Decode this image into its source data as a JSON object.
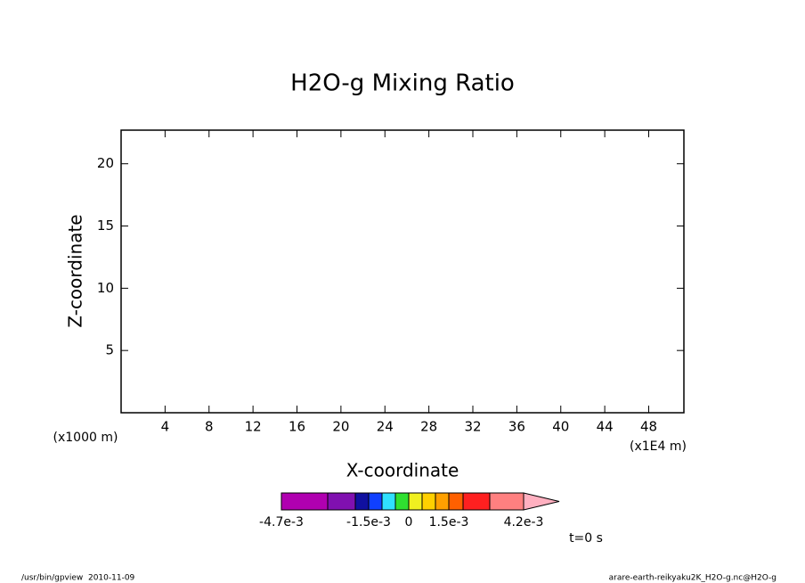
{
  "chart_data": {
    "type": "contour",
    "title": "H2O-g Mixing Ratio",
    "x_label": "X-coordinate",
    "y_label": "Z-coordinate",
    "x_unit": "(x1E4 m)",
    "y_unit": "(x1000 m)",
    "xlim": [
      0,
      51.2
    ],
    "ylim": [
      0,
      22.7
    ],
    "xticks": [
      4,
      8,
      12,
      16,
      20,
      24,
      28,
      32,
      36,
      40,
      44,
      48
    ],
    "yticks": [
      5,
      10,
      15,
      20
    ],
    "colorbar": {
      "colors": [
        "#b000b0",
        "#8010b0",
        "#1010a0",
        "#1040ff",
        "#30e0ff",
        "#30e030",
        "#f0f020",
        "#ffd000",
        "#ffa000",
        "#ff6000",
        "#ff2020",
        "#ff8080",
        "#ffb0c0"
      ],
      "ticks": [
        {
          "value": -0.0047,
          "label": "-4.7e-3"
        },
        {
          "value": -0.0015,
          "label": "-1.5e-3"
        },
        0,
        {
          "value": 0.0015,
          "label": "1.5e-3"
        },
        {
          "value": 0.0042,
          "label": "4.2e-3"
        }
      ]
    },
    "time_label": "t=0 s",
    "footer_left": "/usr/bin/gpview  2010-11-09",
    "footer_right": "arare-earth-reikyaku2K_H2O-g.nc@H2O-g"
  }
}
